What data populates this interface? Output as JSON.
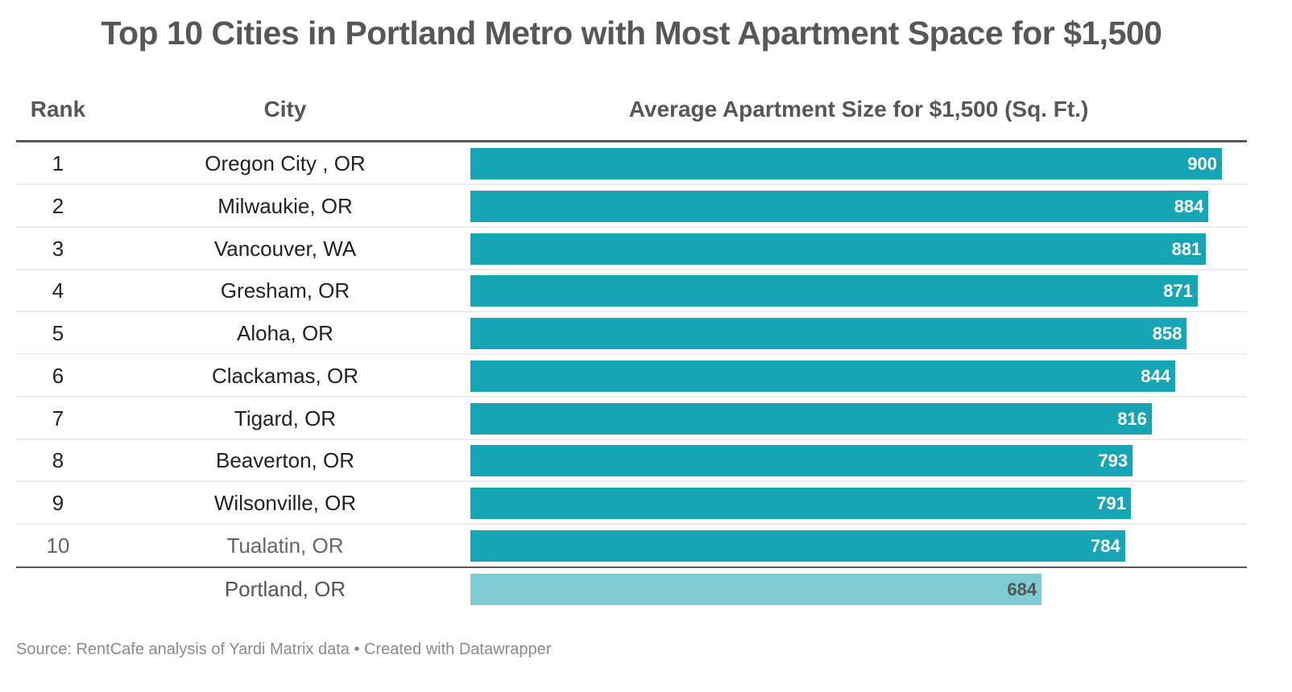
{
  "title": "Top 10 Cities in Portland Metro with Most Apartment Space for $1,500",
  "columns": {
    "rank": "Rank",
    "city": "City",
    "size": "Average Apartment Size for $1,500 (Sq. Ft.)"
  },
  "rows": [
    {
      "rank": "1",
      "city": "Oregon City , OR",
      "value": 900,
      "label": "900"
    },
    {
      "rank": "2",
      "city": "Milwaukie, OR",
      "value": 884,
      "label": "884"
    },
    {
      "rank": "3",
      "city": "Vancouver, WA",
      "value": 881,
      "label": "881"
    },
    {
      "rank": "4",
      "city": "Gresham, OR",
      "value": 871,
      "label": "871"
    },
    {
      "rank": "5",
      "city": "Aloha, OR",
      "value": 858,
      "label": "858"
    },
    {
      "rank": "6",
      "city": "Clackamas, OR",
      "value": 844,
      "label": "844"
    },
    {
      "rank": "7",
      "city": "Tigard, OR",
      "value": 816,
      "label": "816"
    },
    {
      "rank": "8",
      "city": "Beaverton, OR",
      "value": 793,
      "label": "793"
    },
    {
      "rank": "9",
      "city": "Wilsonville, OR",
      "value": 791,
      "label": "791"
    },
    {
      "rank": "10",
      "city": "Tualatin, OR",
      "value": 784,
      "label": "784"
    }
  ],
  "reference_row": {
    "rank": "",
    "city": "Portland, OR",
    "value": 684,
    "label": "684"
  },
  "footer": "Source: RentCafe analysis of Yardi Matrix data • Created with Datawrapper",
  "colors": {
    "bar": "#15a5b5",
    "reference_bar": "#7ecbd3",
    "title_text": "#575757"
  },
  "chart_data": {
    "type": "bar",
    "orientation": "horizontal",
    "title": "Top 10 Cities in Portland Metro with Most Apartment Space for $1,500",
    "xlabel": "Average Apartment Size for $1,500 (Sq. Ft.)",
    "ylabel": "City",
    "categories": [
      "Oregon City , OR",
      "Milwaukie, OR",
      "Vancouver, WA",
      "Gresham, OR",
      "Aloha, OR",
      "Clackamas, OR",
      "Tigard, OR",
      "Beaverton, OR",
      "Wilsonville, OR",
      "Tualatin, OR",
      "Portland, OR"
    ],
    "values": [
      900,
      884,
      881,
      871,
      858,
      844,
      816,
      793,
      791,
      784,
      684
    ],
    "xlim": [
      0,
      900
    ],
    "grid": false,
    "legend": "none",
    "source": "Source: RentCafe analysis of Yardi Matrix data • Created with Datawrapper"
  }
}
